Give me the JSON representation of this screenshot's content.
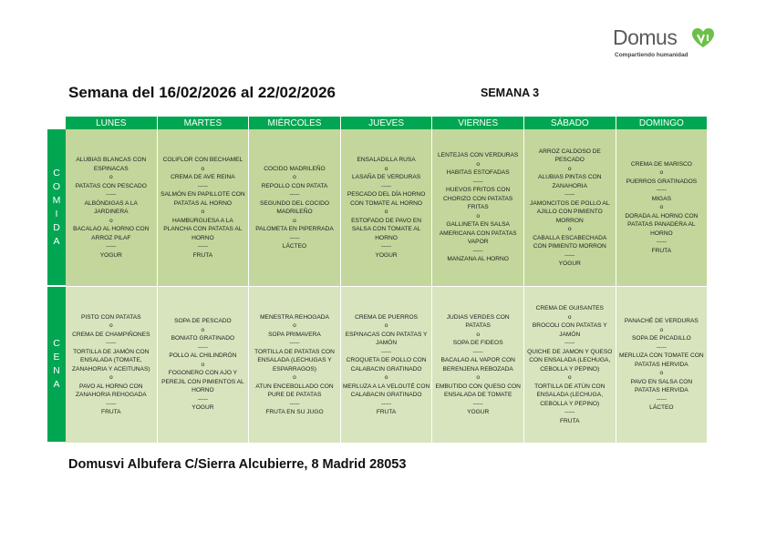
{
  "logo": {
    "name": "DomusVi",
    "word": "Domus",
    "tagline": "Compartiendo humanidad",
    "color": "#6cc04a"
  },
  "title": "Semana del 16/02/2026 al 22/02/2026",
  "week_label": "SEMANA 3",
  "days": [
    "LUNES",
    "MARTES",
    "MIÉRCOLES",
    "JUEVES",
    "VIERNES",
    "SÁBADO",
    "DOMINGO"
  ],
  "rows": [
    {
      "label": [
        "C",
        "O",
        "M",
        "I",
        "D",
        "A"
      ],
      "cells": [
        [
          "ALUBIAS BLANCAS CON ESPINACAS",
          "o",
          "PATATAS CON PESCADO",
          "-----",
          "ALBÓNDIGAS A LA JARDINERA",
          "o",
          "BACALAO AL HORNO CON ARROZ PILAF",
          "-----",
          "YOGUR"
        ],
        [
          "COLIFLOR CON BECHAMEL",
          "o",
          "CREMA DE AVE REINA",
          "-----",
          "SALMÓN EN PAPILLOTE CON PATATAS AL HORNO",
          "o",
          "HAMBURGUESA A LA PLANCHA CON PATATAS AL HORNO",
          "-----",
          "FRUTA"
        ],
        [
          "COCIDO MADRILEÑO",
          "o",
          "REPOLLO CON PATATA",
          "-----",
          "SEGUNDO DEL COCIDO MADRILEÑO",
          "o",
          "PALOMETA EN PIPERRADA",
          "-----",
          "LÁCTEO"
        ],
        [
          "ENSALADILLA RUSA",
          "o",
          "LASAÑA DE VERDURAS",
          "-----",
          "PESCADO DEL DÍA HORNO CON TOMATE AL HORNO",
          "o",
          "ESTOFADO DE PAVO EN SALSA CON TOMATE AL HORNO",
          "-----",
          "YOGUR"
        ],
        [
          "LENTEJAS CON VERDURAS",
          "o",
          "HABITAS ESTOFADAS",
          "-----",
          "HUEVOS FRITOS CON CHORIZO CON PATATAS FRITAS",
          "o",
          "GALLINETA EN SALSA AMERICANA CON PATATAS VAPOR",
          "-----",
          "MANZANA AL HORNO"
        ],
        [
          "ARROZ CALDOSO DE PESCADO",
          "o",
          "ALUBIAS PINTAS CON ZANAHORIA",
          "-----",
          "JAMONCITOS DE POLLO AL AJILLO CON PIMIENTO MORRON",
          "o",
          "CABALLA ESCABECHADA CON PIMIENTO MORRON",
          "-----",
          "YOGUR"
        ],
        [
          "CREMA DE MARISCO",
          "o",
          "PUERROS GRATINADOS",
          "-----",
          "MIGAS",
          "o",
          "DORADA AL HORNO CON PATATAS PANADERA AL HORNO",
          "-----",
          "FRUTA"
        ]
      ]
    },
    {
      "label": [
        "C",
        "E",
        "N",
        "A"
      ],
      "cells": [
        [
          "PISTO CON PATATAS",
          "o",
          "CREMA DE CHAMPIÑONES",
          "-----",
          "TORTILLA DE JAMÓN CON ENSALADA (TOMATE, ZANAHORIA Y ACEITUNAS)",
          "o",
          "PAVO AL HORNO CON ZANAHORIA REHOGADA",
          "-----",
          "FRUTA"
        ],
        [
          "SOPA DE PESCADO",
          "o",
          "BONIATO GRATINADO",
          "-----",
          "POLLO AL CHILINDRÓN",
          "o",
          "FOGONERO CON AJO Y PEREJIL CON PIMIENTOS AL HORNO",
          "-----",
          "YOGUR"
        ],
        [
          "MENESTRA REHOGADA",
          "o",
          "SOPA PRIMAVERA",
          "-----",
          "TORTILLA DE PATATAS CON ENSALADA (LECHUGAS Y ESPARRAGOS)",
          "o",
          "ATUN ENCEBOLLADO CON PURE DE PATATAS",
          "-----",
          "FRUTA EN SU JUGO"
        ],
        [
          "CREMA DE PUERROS",
          "o",
          "ESPINACAS CON PATATAS Y JAMÓN",
          "-----",
          "CROQUETA DE POLLO CON CALABACIN GRATINADO",
          "o",
          "MERLUZA A LA VELOUTÉ CON CALABACIN GRATINADO",
          "-----",
          "FRUTA"
        ],
        [
          "JUDIAS VERDES CON PATATAS",
          "o",
          "SOPA DE FIDEOS",
          "-----",
          "BACALAO AL VAPOR CON BERENJENA REBOZADA",
          "o",
          "EMBUTIDO CON QUESO CON ENSALADA DE TOMATE",
          "-----",
          "YOGUR"
        ],
        [
          "CREMA DE GUISANTES",
          "o",
          "BROCOLI CON PATATAS Y JAMÓN",
          "-----",
          "QUICHE DE JAMON Y QUESO CON ENSALADA (LECHUGA, CEBOLLA Y PEPINO)",
          "o",
          "TORTILLA DE ATÚN CON ENSALADA (LECHUGA, CEBOLLA Y PEPINO)",
          "-----",
          "FRUTA"
        ],
        [
          "PANACHÉ DE VERDURAS",
          "o",
          "SOPA DE PICADILLO",
          "-----",
          "MERLUZA CON TOMATE CON PATATAS HERVIDA",
          "o",
          "PAVO EN SALSA CON PATATAS HERVIDA",
          "-----",
          "LÁCTEO"
        ]
      ]
    }
  ],
  "footer": "Domusvi Albufera C/Sierra Alcubierre, 8 Madrid 28053",
  "colors": {
    "header": "#00a651",
    "comida": "#c3d69b",
    "cena": "#d7e4bd"
  }
}
